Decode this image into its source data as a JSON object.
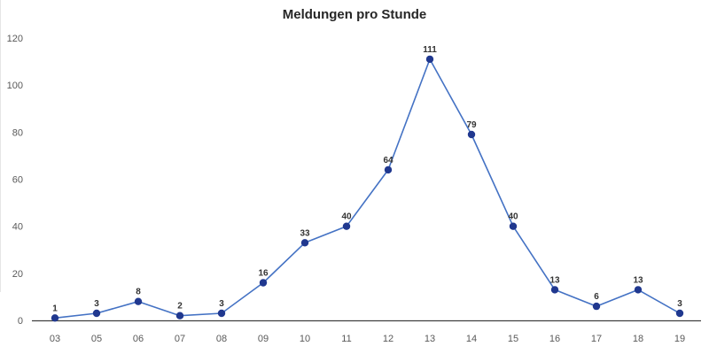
{
  "chart_data": {
    "type": "line",
    "title": "Meldungen pro Stunde",
    "categories": [
      "03",
      "05",
      "06",
      "07",
      "08",
      "09",
      "10",
      "11",
      "12",
      "13",
      "14",
      "15",
      "16",
      "17",
      "18",
      "19"
    ],
    "values": [
      1,
      3,
      8,
      2,
      3,
      16,
      33,
      40,
      64,
      111,
      79,
      40,
      13,
      6,
      13,
      3
    ],
    "data_labels_shown": true,
    "xlabel": "",
    "ylabel": "",
    "yticks": [
      0,
      20,
      40,
      60,
      80,
      100,
      120
    ],
    "ylim": [
      0,
      120
    ],
    "grid": false,
    "legend_position": "none",
    "colors": {
      "line": "#4472C4",
      "marker": "#20388F",
      "axis_line": "#404040",
      "tick_label": "#595959",
      "data_label": "#333333",
      "title": "#262626",
      "background": "#ffffff"
    }
  }
}
